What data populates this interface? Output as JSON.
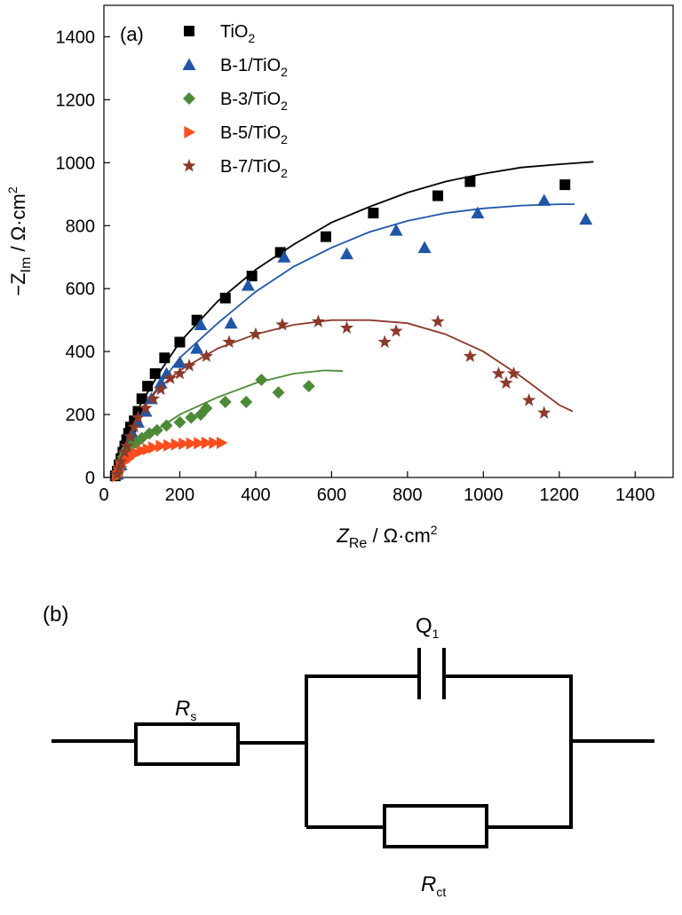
{
  "panel_a": {
    "label": "(a)",
    "xlabel_main": "Z",
    "xlabel_sub": "Re",
    "xlabel_unit": " / Ω·cm",
    "xlabel_sup": "2",
    "ylabel_prefix": "−Z",
    "ylabel_sub": "Im",
    "ylabel_unit": " / Ω·cm",
    "ylabel_sup": "2"
  },
  "panel_b": {
    "label": "(b)",
    "rs_main": "R",
    "rs_sub": "s",
    "q1_main": "Q",
    "q1_sub": "1",
    "rct_main": "R",
    "rct_sub": "ct"
  },
  "legend_items": [
    {
      "prefix": "TiO",
      "sub": "2"
    },
    {
      "prefix": "B-1/TiO",
      "sub": "2"
    },
    {
      "prefix": "B-3/TiO",
      "sub": "2"
    },
    {
      "prefix": "B-5/TiO",
      "sub": "2"
    },
    {
      "prefix": "B-7/TiO",
      "sub": "2"
    }
  ],
  "chart_data": {
    "type": "scatter",
    "title": "",
    "xlabel": "Z_Re / Ω·cm²",
    "ylabel": "−Z_Im / Ω·cm²",
    "xlim": [
      0,
      1500
    ],
    "ylim": [
      0,
      1500
    ],
    "xticks": [
      0,
      200,
      400,
      600,
      800,
      1000,
      1200,
      1400
    ],
    "yticks": [
      0,
      200,
      400,
      600,
      800,
      1000,
      1200,
      1400
    ],
    "legend_position": "top-left",
    "grid": false,
    "series": [
      {
        "name": "TiO2",
        "marker": "square",
        "color": "#000000",
        "points": [
          [
            30,
            5
          ],
          [
            35,
            20
          ],
          [
            40,
            40
          ],
          [
            45,
            60
          ],
          [
            50,
            80
          ],
          [
            55,
            100
          ],
          [
            60,
            120
          ],
          [
            65,
            140
          ],
          [
            70,
            160
          ],
          [
            80,
            180
          ],
          [
            90,
            210
          ],
          [
            100,
            250
          ],
          [
            115,
            290
          ],
          [
            135,
            330
          ],
          [
            160,
            380
          ],
          [
            200,
            430
          ],
          [
            245,
            500
          ],
          [
            320,
            570
          ],
          [
            390,
            640
          ],
          [
            465,
            715
          ],
          [
            585,
            765
          ],
          [
            710,
            840
          ],
          [
            880,
            895
          ],
          [
            965,
            940
          ],
          [
            1215,
            930
          ]
        ],
        "fit": [
          [
            30,
            0
          ],
          [
            40,
            60
          ],
          [
            60,
            140
          ],
          [
            100,
            240
          ],
          [
            150,
            340
          ],
          [
            200,
            430
          ],
          [
            300,
            560
          ],
          [
            400,
            660
          ],
          [
            500,
            740
          ],
          [
            600,
            810
          ],
          [
            700,
            860
          ],
          [
            800,
            905
          ],
          [
            900,
            940
          ],
          [
            1000,
            965
          ],
          [
            1100,
            985
          ],
          [
            1200,
            995
          ],
          [
            1290,
            1003
          ]
        ]
      },
      {
        "name": "B-1/TiO2",
        "marker": "triangle",
        "color": "#1f56a8",
        "points": [
          [
            35,
            10
          ],
          [
            45,
            40
          ],
          [
            55,
            75
          ],
          [
            65,
            110
          ],
          [
            75,
            140
          ],
          [
            90,
            175
          ],
          [
            110,
            210
          ],
          [
            125,
            250
          ],
          [
            150,
            300
          ],
          [
            165,
            330
          ],
          [
            200,
            365
          ],
          [
            245,
            410
          ],
          [
            255,
            485
          ],
          [
            335,
            490
          ],
          [
            380,
            610
          ],
          [
            475,
            700
          ],
          [
            640,
            710
          ],
          [
            770,
            785
          ],
          [
            845,
            730
          ],
          [
            985,
            840
          ],
          [
            1160,
            880
          ],
          [
            1270,
            820
          ]
        ],
        "fit": [
          [
            30,
            0
          ],
          [
            40,
            50
          ],
          [
            60,
            120
          ],
          [
            100,
            210
          ],
          [
            150,
            300
          ],
          [
            200,
            380
          ],
          [
            300,
            490
          ],
          [
            400,
            590
          ],
          [
            500,
            670
          ],
          [
            600,
            730
          ],
          [
            700,
            780
          ],
          [
            800,
            815
          ],
          [
            900,
            840
          ],
          [
            1000,
            855
          ],
          [
            1100,
            864
          ],
          [
            1200,
            868
          ],
          [
            1240,
            868
          ]
        ]
      },
      {
        "name": "B-3/TiO2",
        "marker": "diamond",
        "color": "#4d8a38",
        "points": [
          [
            35,
            10
          ],
          [
            40,
            30
          ],
          [
            45,
            50
          ],
          [
            50,
            65
          ],
          [
            55,
            80
          ],
          [
            60,
            90
          ],
          [
            70,
            100
          ],
          [
            85,
            110
          ],
          [
            100,
            125
          ],
          [
            120,
            140
          ],
          [
            140,
            150
          ],
          [
            165,
            165
          ],
          [
            200,
            175
          ],
          [
            230,
            190
          ],
          [
            255,
            200
          ],
          [
            270,
            220
          ],
          [
            320,
            240
          ],
          [
            375,
            240
          ],
          [
            415,
            310
          ],
          [
            460,
            270
          ],
          [
            540,
            290
          ]
        ],
        "fit": [
          [
            30,
            0
          ],
          [
            40,
            40
          ],
          [
            60,
            80
          ],
          [
            100,
            120
          ],
          [
            150,
            160
          ],
          [
            200,
            200
          ],
          [
            300,
            255
          ],
          [
            400,
            300
          ],
          [
            500,
            330
          ],
          [
            580,
            340
          ],
          [
            630,
            338
          ]
        ]
      },
      {
        "name": "B-5/TiO2",
        "marker": "right-triangle",
        "color": "#ff4d1c",
        "points": [
          [
            35,
            5
          ],
          [
            40,
            20
          ],
          [
            45,
            35
          ],
          [
            55,
            50
          ],
          [
            65,
            60
          ],
          [
            75,
            70
          ],
          [
            85,
            78
          ],
          [
            100,
            85
          ],
          [
            115,
            90
          ],
          [
            130,
            95
          ],
          [
            150,
            100
          ],
          [
            170,
            102
          ],
          [
            190,
            105
          ],
          [
            210,
            107
          ],
          [
            230,
            108
          ],
          [
            250,
            109
          ],
          [
            270,
            110
          ],
          [
            290,
            110
          ],
          [
            310,
            110
          ]
        ]
      },
      {
        "name": "B-7/TiO2",
        "marker": "star",
        "color": "#8b3a2a",
        "points": [
          [
            35,
            10
          ],
          [
            40,
            30
          ],
          [
            45,
            50
          ],
          [
            55,
            80
          ],
          [
            60,
            100
          ],
          [
            70,
            130
          ],
          [
            80,
            160
          ],
          [
            90,
            190
          ],
          [
            110,
            220
          ],
          [
            130,
            250
          ],
          [
            150,
            280
          ],
          [
            175,
            315
          ],
          [
            200,
            330
          ],
          [
            225,
            355
          ],
          [
            270,
            385
          ],
          [
            330,
            430
          ],
          [
            400,
            455
          ],
          [
            470,
            485
          ],
          [
            565,
            495
          ],
          [
            640,
            475
          ],
          [
            740,
            430
          ],
          [
            770,
            465
          ],
          [
            880,
            495
          ],
          [
            965,
            385
          ],
          [
            1040,
            330
          ],
          [
            1060,
            300
          ],
          [
            1080,
            330
          ],
          [
            1120,
            245
          ],
          [
            1160,
            205
          ]
        ],
        "fit": [
          [
            30,
            0
          ],
          [
            40,
            60
          ],
          [
            60,
            140
          ],
          [
            100,
            220
          ],
          [
            150,
            290
          ],
          [
            200,
            340
          ],
          [
            300,
            410
          ],
          [
            400,
            455
          ],
          [
            500,
            485
          ],
          [
            600,
            500
          ],
          [
            700,
            500
          ],
          [
            800,
            490
          ],
          [
            900,
            455
          ],
          [
            1000,
            400
          ],
          [
            1100,
            320
          ],
          [
            1200,
            230
          ],
          [
            1235,
            210
          ]
        ]
      }
    ]
  }
}
